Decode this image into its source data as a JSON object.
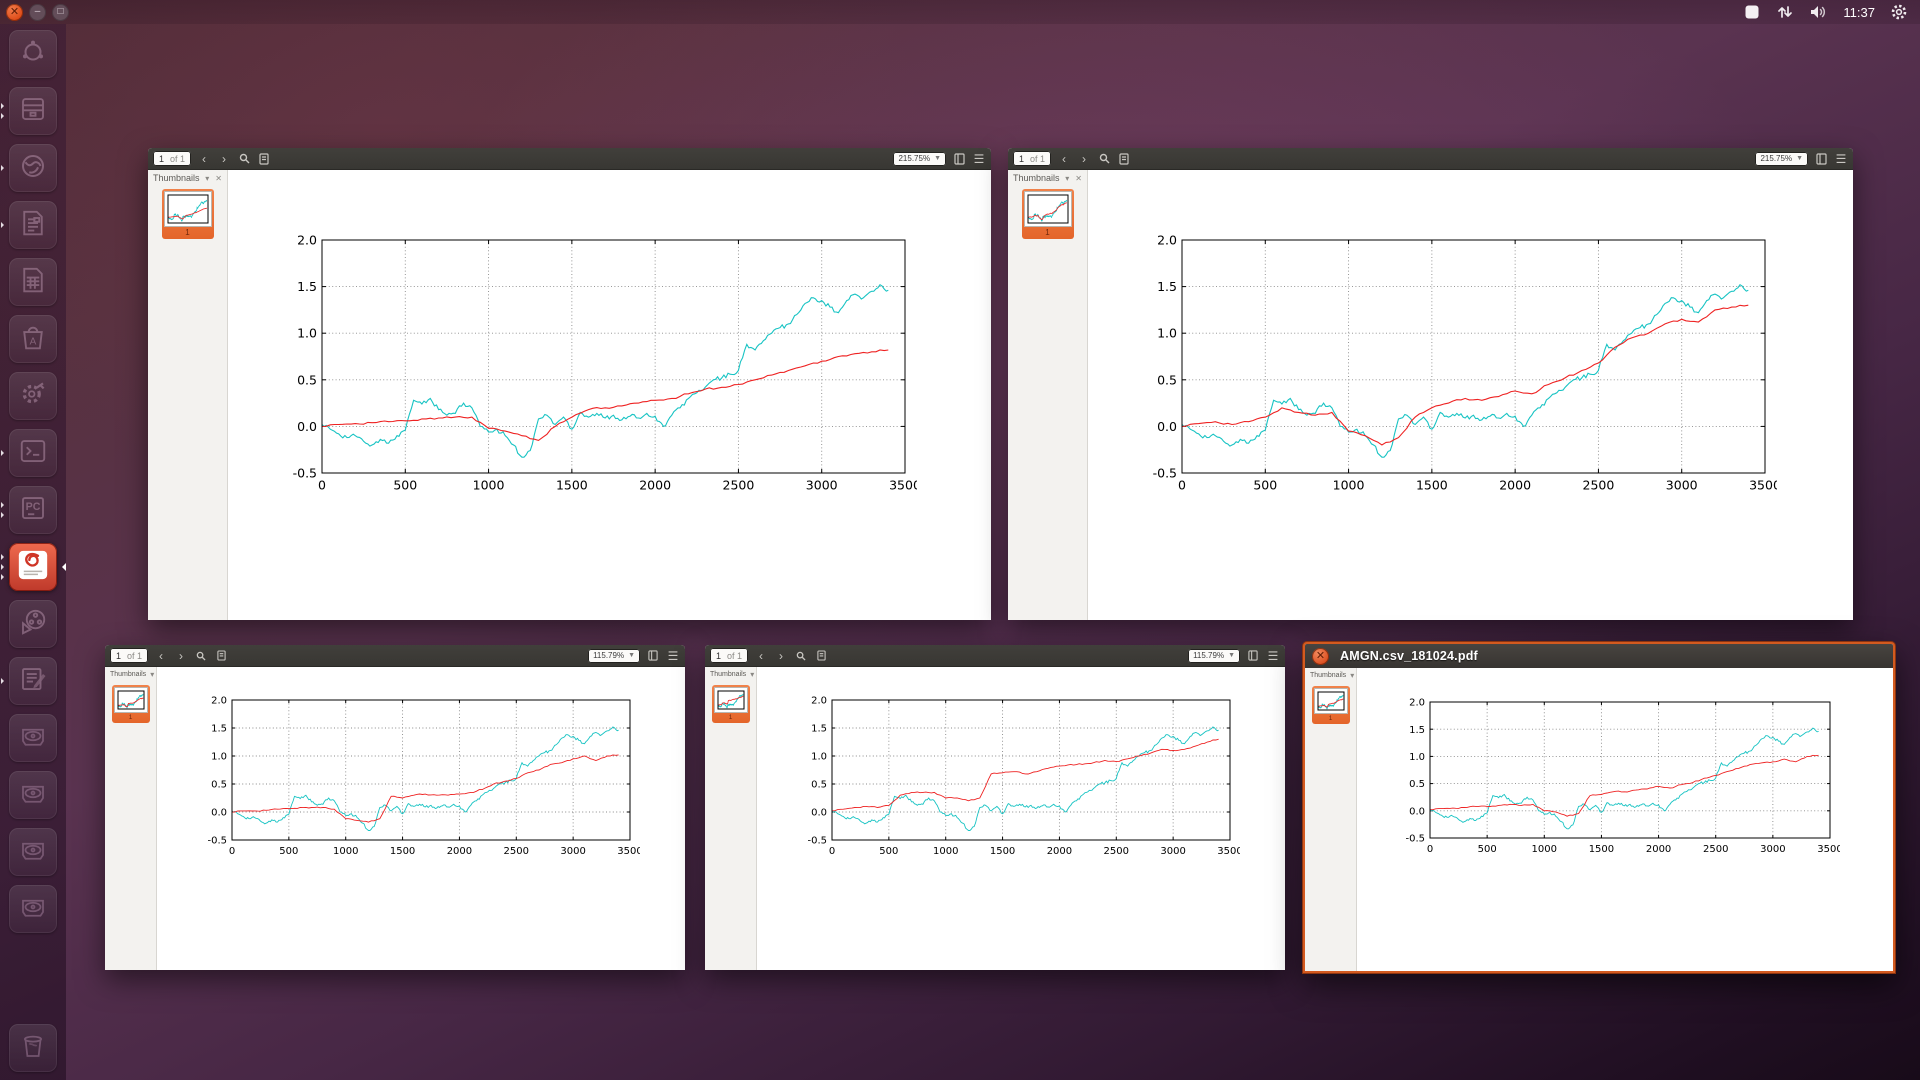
{
  "panel": {
    "time": "11:37",
    "window_controls": {
      "close": "x",
      "minimize": "-",
      "maximize": "o"
    },
    "indicators": [
      "square-indicator",
      "network-indicator",
      "volume-indicator",
      "clock",
      "session-indicator"
    ]
  },
  "launcher": {
    "items": [
      {
        "icon": "dash-icon",
        "pips": 0,
        "focused": false
      },
      {
        "icon": "files-icon",
        "pips": 2,
        "focused": false
      },
      {
        "icon": "firefox-icon",
        "pips": 1,
        "focused": false
      },
      {
        "icon": "writer-icon",
        "pips": 1,
        "focused": false
      },
      {
        "icon": "calc-icon",
        "pips": 0,
        "focused": false
      },
      {
        "icon": "software-icon",
        "pips": 0,
        "focused": false
      },
      {
        "icon": "settings-icon",
        "pips": 0,
        "focused": false
      },
      {
        "icon": "terminal-icon",
        "pips": 1,
        "focused": false
      },
      {
        "icon": "pycharm-icon",
        "pips": 2,
        "focused": false
      },
      {
        "icon": "evince-icon",
        "pips": 3,
        "focused": true
      },
      {
        "icon": "openshot-icon",
        "pips": 0,
        "focused": false
      },
      {
        "icon": "gedit-icon",
        "pips": 1,
        "focused": false
      },
      {
        "icon": "disk-icon",
        "pips": 0,
        "focused": false
      },
      {
        "icon": "disk-icon",
        "pips": 0,
        "focused": false
      },
      {
        "icon": "disk-icon",
        "pips": 0,
        "focused": false
      },
      {
        "icon": "disk-icon",
        "pips": 0,
        "focused": false
      },
      {
        "icon": "trash-icon",
        "pips": 0,
        "focused": false
      }
    ]
  },
  "windows": [
    {
      "toolbar": {
        "page": "1",
        "of": "of 1",
        "zoom": "215.75%"
      },
      "sidebar": {
        "header": "Thumbnails",
        "page_label": "1"
      }
    },
    {
      "toolbar": {
        "page": "1",
        "of": "of 1",
        "zoom": "215.75%"
      },
      "sidebar": {
        "header": "Thumbnails",
        "page_label": "1"
      }
    },
    {
      "toolbar": {
        "page": "1",
        "of": "of 1",
        "zoom": "115.79%"
      },
      "sidebar": {
        "header": "Thumbnails",
        "page_label": "1"
      }
    },
    {
      "toolbar": {
        "page": "1",
        "of": "of 1",
        "zoom": "115.79%"
      },
      "sidebar": {
        "header": "Thumbnails",
        "page_label": "1"
      }
    },
    {
      "title": "AMGN.csv_181024.pdf",
      "sidebar": {
        "header": "Thumbnails",
        "page_label": "1"
      }
    }
  ],
  "chart_data": [
    {
      "type": "line",
      "title": "",
      "xlabel": "",
      "ylabel": "",
      "xlim": [
        0,
        3500
      ],
      "ylim": [
        -0.5,
        2.0
      ],
      "xticks": [
        0,
        500,
        1000,
        1500,
        2000,
        2500,
        3000,
        3500
      ],
      "yticks": [
        -0.5,
        0.0,
        0.5,
        1.0,
        1.5,
        2.0
      ],
      "grid": true,
      "legend": false,
      "series": [
        {
          "name": "cyan-line",
          "color": "#17c3c3",
          "x_start": 0,
          "x_step": 50,
          "y": [
            0.02,
            -0.03,
            -0.08,
            -0.12,
            -0.1,
            -0.16,
            -0.2,
            -0.14,
            -0.18,
            -0.1,
            -0.04,
            0.28,
            0.24,
            0.3,
            0.18,
            0.12,
            0.14,
            0.25,
            0.2,
            0.0,
            -0.06,
            -0.03,
            -0.1,
            -0.2,
            -0.33,
            -0.26,
            0.08,
            0.12,
            0.02,
            0.1,
            -0.03,
            0.15,
            0.1,
            0.14,
            0.09,
            0.12,
            0.07,
            0.11,
            0.09,
            0.14,
            0.11,
            0.0,
            0.12,
            0.2,
            0.3,
            0.36,
            0.42,
            0.5,
            0.52,
            0.56,
            0.6,
            0.88,
            0.82,
            0.92,
            1.0,
            1.06,
            1.1,
            1.2,
            1.32,
            1.38,
            1.35,
            1.28,
            1.22,
            1.35,
            1.42,
            1.38,
            1.45,
            1.52,
            1.46
          ]
        },
        {
          "name": "red-line",
          "color": "#ee2222",
          "x_start": 0,
          "x_step": 100,
          "y": [
            0.0,
            0.02,
            0.03,
            0.04,
            0.05,
            0.06,
            0.08,
            0.09,
            0.1,
            0.1,
            -0.02,
            -0.05,
            -0.1,
            -0.15,
            0.0,
            0.1,
            0.18,
            0.2,
            0.22,
            0.25,
            0.28,
            0.3,
            0.35,
            0.4,
            0.42,
            0.45,
            0.5,
            0.55,
            0.6,
            0.65,
            0.7,
            0.75,
            0.78,
            0.8,
            0.82
          ]
        }
      ]
    },
    {
      "type": "line",
      "title": "",
      "xlabel": "",
      "ylabel": "",
      "xlim": [
        0,
        3500
      ],
      "ylim": [
        -0.5,
        2.0
      ],
      "xticks": [
        0,
        500,
        1000,
        1500,
        2000,
        2500,
        3000,
        3500
      ],
      "yticks": [
        -0.5,
        0.0,
        0.5,
        1.0,
        1.5,
        2.0
      ],
      "grid": true,
      "legend": false,
      "series": [
        {
          "name": "cyan-line",
          "color": "#17c3c3",
          "x_start": 0,
          "x_step": 50,
          "y": [
            0.02,
            -0.03,
            -0.08,
            -0.12,
            -0.1,
            -0.16,
            -0.2,
            -0.14,
            -0.18,
            -0.1,
            -0.04,
            0.28,
            0.24,
            0.3,
            0.18,
            0.12,
            0.14,
            0.25,
            0.2,
            0.0,
            -0.06,
            -0.03,
            -0.1,
            -0.2,
            -0.33,
            -0.26,
            0.08,
            0.12,
            0.02,
            0.1,
            -0.03,
            0.15,
            0.1,
            0.14,
            0.09,
            0.12,
            0.07,
            0.11,
            0.09,
            0.14,
            0.11,
            0.0,
            0.12,
            0.2,
            0.3,
            0.36,
            0.42,
            0.5,
            0.52,
            0.56,
            0.6,
            0.88,
            0.82,
            0.92,
            1.0,
            1.06,
            1.1,
            1.2,
            1.32,
            1.38,
            1.35,
            1.28,
            1.22,
            1.35,
            1.42,
            1.38,
            1.45,
            1.52,
            1.46
          ]
        },
        {
          "name": "red-line",
          "color": "#ee2222",
          "x_start": 0,
          "x_step": 100,
          "y": [
            0.0,
            0.03,
            0.05,
            0.02,
            0.05,
            0.1,
            0.2,
            0.15,
            0.12,
            0.15,
            -0.05,
            -0.1,
            -0.2,
            -0.12,
            0.1,
            0.2,
            0.25,
            0.3,
            0.28,
            0.32,
            0.38,
            0.35,
            0.45,
            0.52,
            0.6,
            0.68,
            0.85,
            0.95,
            1.0,
            1.1,
            1.15,
            1.12,
            1.25,
            1.28,
            1.3
          ]
        }
      ]
    },
    {
      "type": "line",
      "title": "",
      "xlabel": "",
      "ylabel": "",
      "xlim": [
        0,
        3500
      ],
      "ylim": [
        -0.5,
        2.0
      ],
      "xticks": [
        0,
        500,
        1000,
        1500,
        2000,
        2500,
        3000,
        3500
      ],
      "yticks": [
        -0.5,
        0.0,
        0.5,
        1.0,
        1.5,
        2.0
      ],
      "grid": true,
      "legend": false,
      "series": [
        {
          "name": "cyan-line",
          "color": "#17c3c3",
          "x_start": 0,
          "x_step": 50,
          "y": [
            0.02,
            -0.03,
            -0.08,
            -0.12,
            -0.1,
            -0.16,
            -0.2,
            -0.14,
            -0.18,
            -0.1,
            -0.04,
            0.28,
            0.24,
            0.3,
            0.18,
            0.12,
            0.14,
            0.25,
            0.2,
            0.0,
            -0.06,
            -0.03,
            -0.1,
            -0.2,
            -0.33,
            -0.26,
            0.08,
            0.12,
            0.02,
            0.1,
            -0.03,
            0.15,
            0.1,
            0.14,
            0.09,
            0.12,
            0.07,
            0.11,
            0.09,
            0.14,
            0.11,
            0.0,
            0.12,
            0.2,
            0.3,
            0.36,
            0.42,
            0.5,
            0.52,
            0.56,
            0.6,
            0.88,
            0.82,
            0.92,
            1.0,
            1.06,
            1.1,
            1.2,
            1.32,
            1.38,
            1.35,
            1.28,
            1.22,
            1.35,
            1.42,
            1.38,
            1.45,
            1.52,
            1.46
          ]
        },
        {
          "name": "red-line",
          "color": "#ee2222",
          "x_start": 0,
          "x_step": 100,
          "y": [
            0.0,
            0.02,
            0.02,
            0.03,
            0.05,
            0.06,
            0.08,
            0.08,
            0.08,
            0.05,
            -0.12,
            -0.15,
            -0.18,
            -0.12,
            0.28,
            0.25,
            0.3,
            0.32,
            0.3,
            0.3,
            0.32,
            0.35,
            0.4,
            0.5,
            0.55,
            0.6,
            0.7,
            0.75,
            0.85,
            0.88,
            0.95,
            1.0,
            0.92,
            1.0,
            1.02
          ]
        }
      ]
    },
    {
      "type": "line",
      "title": "",
      "xlabel": "",
      "ylabel": "",
      "xlim": [
        0,
        3500
      ],
      "ylim": [
        -0.5,
        2.0
      ],
      "xticks": [
        0,
        500,
        1000,
        1500,
        2000,
        2500,
        3000,
        3500
      ],
      "yticks": [
        -0.5,
        0.0,
        0.5,
        1.0,
        1.5,
        2.0
      ],
      "grid": true,
      "legend": false,
      "series": [
        {
          "name": "cyan-line",
          "color": "#17c3c3",
          "x_start": 0,
          "x_step": 50,
          "y": [
            0.02,
            -0.03,
            -0.08,
            -0.12,
            -0.1,
            -0.16,
            -0.2,
            -0.14,
            -0.18,
            -0.1,
            -0.04,
            0.28,
            0.24,
            0.3,
            0.18,
            0.12,
            0.14,
            0.25,
            0.2,
            0.0,
            -0.06,
            -0.03,
            -0.1,
            -0.2,
            -0.33,
            -0.26,
            0.08,
            0.12,
            0.02,
            0.1,
            -0.03,
            0.15,
            0.1,
            0.14,
            0.09,
            0.12,
            0.07,
            0.11,
            0.09,
            0.14,
            0.11,
            0.0,
            0.12,
            0.2,
            0.3,
            0.36,
            0.42,
            0.5,
            0.52,
            0.56,
            0.6,
            0.88,
            0.82,
            0.92,
            1.0,
            1.06,
            1.1,
            1.2,
            1.32,
            1.38,
            1.35,
            1.28,
            1.22,
            1.35,
            1.42,
            1.38,
            1.45,
            1.52,
            1.46
          ]
        },
        {
          "name": "red-line",
          "color": "#ee2222",
          "x_start": 0,
          "x_step": 100,
          "y": [
            0.02,
            0.05,
            0.08,
            0.1,
            0.08,
            0.12,
            0.3,
            0.35,
            0.35,
            0.35,
            0.25,
            0.25,
            0.2,
            0.25,
            0.68,
            0.7,
            0.72,
            0.68,
            0.72,
            0.78,
            0.82,
            0.85,
            0.85,
            0.88,
            0.92,
            0.9,
            0.95,
            1.0,
            1.05,
            1.12,
            1.1,
            1.12,
            1.18,
            1.25,
            1.3
          ]
        }
      ]
    },
    {
      "type": "line",
      "title": "",
      "xlabel": "",
      "ylabel": "",
      "xlim": [
        0,
        3500
      ],
      "ylim": [
        -0.5,
        2.0
      ],
      "xticks": [
        0,
        500,
        1000,
        1500,
        2000,
        2500,
        3000,
        3500
      ],
      "yticks": [
        -0.5,
        0.0,
        0.5,
        1.0,
        1.5,
        2.0
      ],
      "grid": true,
      "legend": false,
      "series": [
        {
          "name": "cyan-line",
          "color": "#17c3c3",
          "x_start": 0,
          "x_step": 50,
          "y": [
            0.02,
            -0.03,
            -0.08,
            -0.12,
            -0.1,
            -0.16,
            -0.2,
            -0.14,
            -0.18,
            -0.1,
            -0.04,
            0.28,
            0.24,
            0.3,
            0.18,
            0.12,
            0.14,
            0.25,
            0.2,
            0.0,
            -0.06,
            -0.03,
            -0.1,
            -0.2,
            -0.33,
            -0.26,
            0.08,
            0.12,
            0.02,
            0.1,
            -0.03,
            0.15,
            0.1,
            0.14,
            0.09,
            0.12,
            0.07,
            0.11,
            0.09,
            0.14,
            0.11,
            0.0,
            0.12,
            0.2,
            0.3,
            0.36,
            0.42,
            0.5,
            0.52,
            0.56,
            0.6,
            0.88,
            0.82,
            0.92,
            1.0,
            1.06,
            1.1,
            1.2,
            1.32,
            1.38,
            1.35,
            1.28,
            1.22,
            1.35,
            1.42,
            1.38,
            1.45,
            1.52,
            1.46
          ]
        },
        {
          "name": "red-line",
          "color": "#ee2222",
          "x_start": 0,
          "x_step": 100,
          "y": [
            0.02,
            0.04,
            0.05,
            0.06,
            0.08,
            0.08,
            0.1,
            0.12,
            0.1,
            0.12,
            0.0,
            -0.02,
            -0.1,
            -0.05,
            0.28,
            0.3,
            0.35,
            0.35,
            0.38,
            0.4,
            0.45,
            0.42,
            0.48,
            0.52,
            0.6,
            0.65,
            0.72,
            0.78,
            0.85,
            0.88,
            0.9,
            0.95,
            0.9,
            1.0,
            1.02
          ]
        }
      ]
    }
  ]
}
